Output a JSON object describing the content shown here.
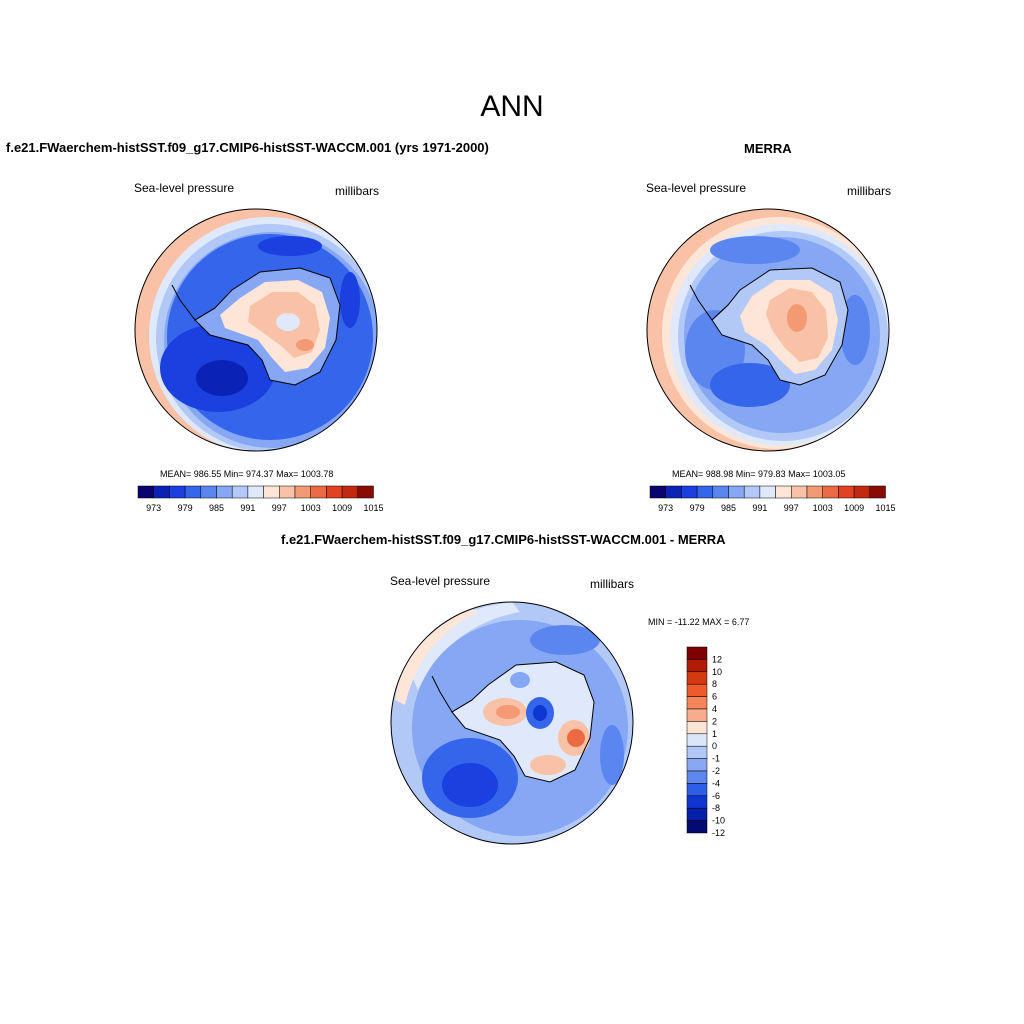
{
  "title": "ANN",
  "panels": [
    {
      "title": "f.e21.FWaerchem-histSST.f09_g17.CMIP6-histSST-WACCM.001 (yrs 1971-2000)",
      "variable": "Sea-level pressure",
      "units": "millibars",
      "stats": "MEAN= 986.55  Min= 974.37  Max= 1003.78",
      "colorbar_labels": [
        "973",
        "979",
        "985",
        "991",
        "997",
        "1003",
        "1009",
        "1015"
      ]
    },
    {
      "title": "MERRA",
      "variable": "Sea-level pressure",
      "units": "millibars",
      "stats": "MEAN= 988.98  Min= 979.83  Max= 1003.05",
      "colorbar_labels": [
        "973",
        "979",
        "985",
        "991",
        "997",
        "1003",
        "1009",
        "1015"
      ]
    },
    {
      "title": "f.e21.FWaerchem-histSST.f09_g17.CMIP6-histSST-WACCM.001 - MERRA",
      "variable": "Sea-level pressure",
      "units": "millibars",
      "stats": "MIN = -11.22 MAX =   6.77",
      "colorbar_labels": [
        "12",
        "10",
        "8",
        "6",
        "4",
        "2",
        "1",
        "0",
        "-1",
        "-2",
        "-4",
        "-6",
        "-8",
        "-10",
        "-12"
      ]
    }
  ],
  "colors": {
    "slp_scale": [
      "#08066e",
      "#0a22b5",
      "#1a40e0",
      "#3565ea",
      "#5b86ef",
      "#86a7f3",
      "#b2c8f7",
      "#dfe9fb",
      "#fde6d8",
      "#f9c1a5",
      "#f39a75",
      "#ec6b45",
      "#e14320",
      "#c12a0f",
      "#8a0b02"
    ],
    "diff_scale": [
      "#7e0000",
      "#b11b06",
      "#d4390f",
      "#ef5a2a",
      "#f4845a",
      "#f7ac8c",
      "#fbe5d6",
      "#dce6f9",
      "#b2c8f7",
      "#8aa8f2",
      "#5d86ee",
      "#2e5ee6",
      "#0d37d0",
      "#061fa8",
      "#030b72"
    ],
    "ocean": "#2f63e8",
    "ice_ring": "#6f97ee",
    "coast": "#000000"
  }
}
